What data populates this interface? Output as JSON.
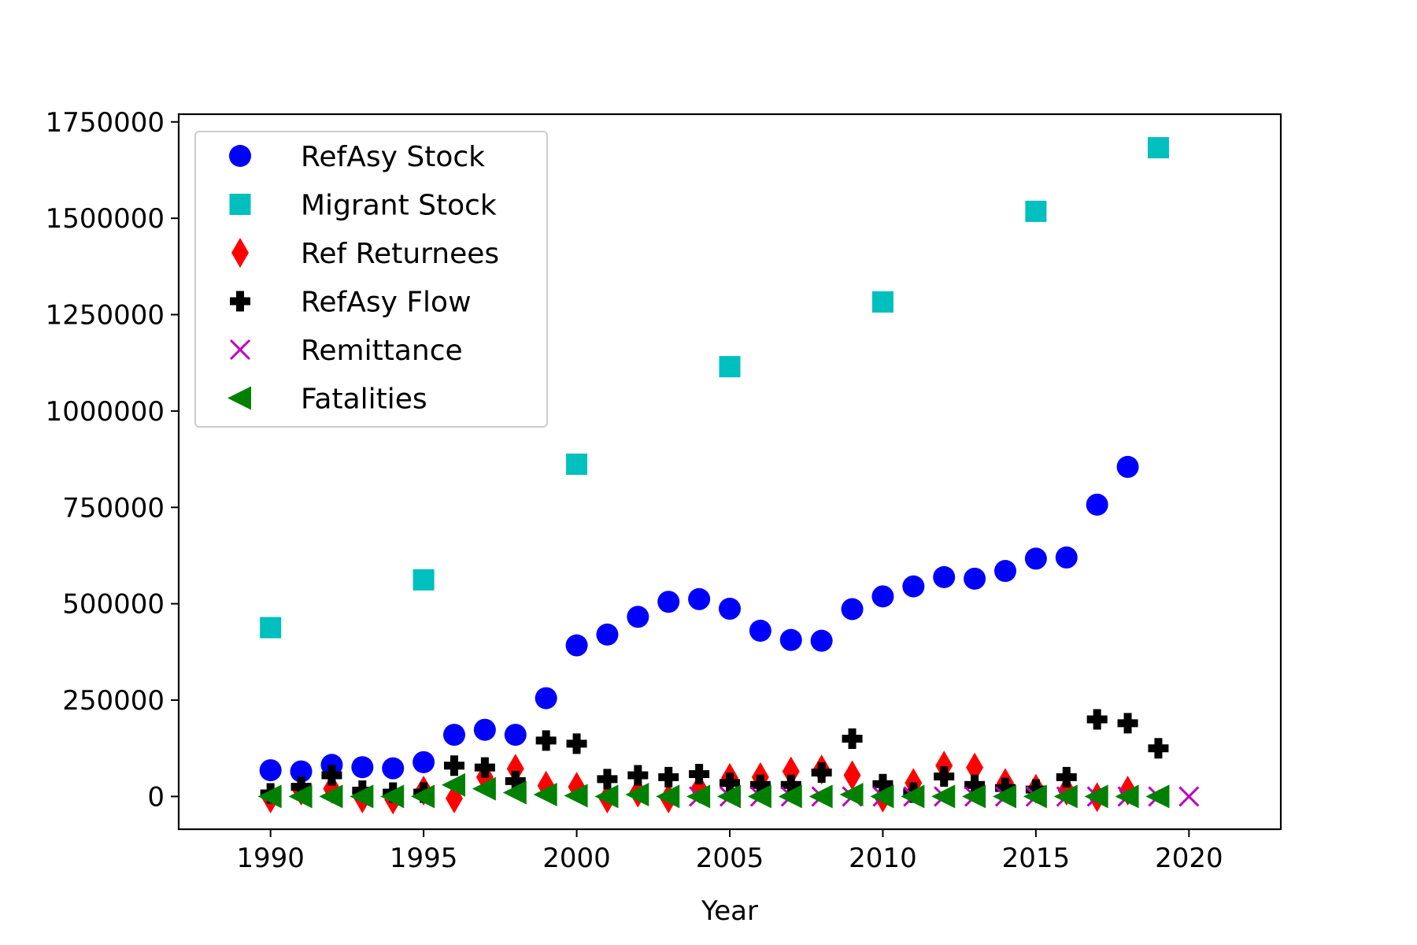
{
  "chart_data": {
    "type": "scatter",
    "title": "",
    "xlabel": "Year",
    "ylabel": "",
    "xlim": [
      1987,
      2023
    ],
    "ylim": [
      -85000,
      1770000
    ],
    "xticks": [
      1990,
      1995,
      2000,
      2005,
      2010,
      2015,
      2020
    ],
    "yticks": [
      0,
      250000,
      500000,
      750000,
      1000000,
      1250000,
      1500000,
      1750000
    ],
    "grid": false,
    "legend_position": "upper-left",
    "series": [
      {
        "name": "RefAsy Stock",
        "marker": "circle",
        "color": "#0000ff",
        "points": [
          [
            1990,
            68000
          ],
          [
            1991,
            65000
          ],
          [
            1992,
            82000
          ],
          [
            1993,
            76000
          ],
          [
            1994,
            73000
          ],
          [
            1995,
            89000
          ],
          [
            1996,
            160000
          ],
          [
            1997,
            173000
          ],
          [
            1998,
            160000
          ],
          [
            1999,
            255000
          ],
          [
            2000,
            392000
          ],
          [
            2001,
            420000
          ],
          [
            2002,
            466000
          ],
          [
            2003,
            505000
          ],
          [
            2004,
            512000
          ],
          [
            2005,
            487000
          ],
          [
            2006,
            430000
          ],
          [
            2007,
            406000
          ],
          [
            2008,
            404000
          ],
          [
            2009,
            486000
          ],
          [
            2010,
            519000
          ],
          [
            2011,
            545000
          ],
          [
            2012,
            569000
          ],
          [
            2013,
            565000
          ],
          [
            2014,
            585000
          ],
          [
            2015,
            617000
          ],
          [
            2016,
            620000
          ],
          [
            2017,
            757000
          ],
          [
            2018,
            855000
          ]
        ]
      },
      {
        "name": "Migrant Stock",
        "marker": "square",
        "color": "#00bfbf",
        "points": [
          [
            1990,
            438000
          ],
          [
            1995,
            562000
          ],
          [
            2000,
            862000
          ],
          [
            2005,
            1115000
          ],
          [
            2010,
            1283000
          ],
          [
            2015,
            1518000
          ],
          [
            2019,
            1683000
          ]
        ]
      },
      {
        "name": "Ref Returnees",
        "marker": "thin_diamond",
        "color": "#ff0000",
        "points": [
          [
            1990,
            -5000
          ],
          [
            1991,
            15000
          ],
          [
            1992,
            20000
          ],
          [
            1993,
            -5000
          ],
          [
            1994,
            -8000
          ],
          [
            1995,
            15000
          ],
          [
            1996,
            -5000
          ],
          [
            1997,
            50000
          ],
          [
            1998,
            72000
          ],
          [
            1999,
            28000
          ],
          [
            2000,
            25000
          ],
          [
            2001,
            -5000
          ],
          [
            2002,
            10000
          ],
          [
            2003,
            -5000
          ],
          [
            2004,
            20000
          ],
          [
            2005,
            48000
          ],
          [
            2006,
            50000
          ],
          [
            2007,
            65000
          ],
          [
            2008,
            70000
          ],
          [
            2009,
            55000
          ],
          [
            2010,
            -3000
          ],
          [
            2011,
            35000
          ],
          [
            2012,
            80000
          ],
          [
            2013,
            75000
          ],
          [
            2014,
            35000
          ],
          [
            2015,
            20000
          ],
          [
            2016,
            15000
          ],
          [
            2017,
            -2000
          ],
          [
            2018,
            15000
          ]
        ]
      },
      {
        "name": "RefAsy Flow",
        "marker": "plus_filled",
        "color": "#000000",
        "points": [
          [
            1990,
            8000
          ],
          [
            1991,
            25000
          ],
          [
            1992,
            55000
          ],
          [
            1993,
            15000
          ],
          [
            1994,
            10000
          ],
          [
            1995,
            10000
          ],
          [
            1996,
            80000
          ],
          [
            1997,
            75000
          ],
          [
            1998,
            40000
          ],
          [
            1999,
            145000
          ],
          [
            2000,
            137000
          ],
          [
            2001,
            45000
          ],
          [
            2002,
            55000
          ],
          [
            2003,
            50000
          ],
          [
            2004,
            58000
          ],
          [
            2005,
            35000
          ],
          [
            2006,
            30000
          ],
          [
            2007,
            30000
          ],
          [
            2008,
            62000
          ],
          [
            2009,
            150000
          ],
          [
            2010,
            32000
          ],
          [
            2011,
            10000
          ],
          [
            2012,
            52000
          ],
          [
            2013,
            30000
          ],
          [
            2014,
            22000
          ],
          [
            2015,
            18000
          ],
          [
            2016,
            50000
          ],
          [
            2017,
            200000
          ],
          [
            2018,
            190000
          ],
          [
            2019,
            125000
          ]
        ]
      },
      {
        "name": "Remittance",
        "marker": "x",
        "color": "#bf00bf",
        "points": [
          [
            2004,
            0
          ],
          [
            2005,
            0
          ],
          [
            2006,
            0
          ],
          [
            2007,
            0
          ],
          [
            2008,
            0
          ],
          [
            2009,
            0
          ],
          [
            2010,
            0
          ],
          [
            2011,
            0
          ],
          [
            2012,
            0
          ],
          [
            2013,
            0
          ],
          [
            2014,
            0
          ],
          [
            2015,
            0
          ],
          [
            2016,
            0
          ],
          [
            2017,
            0
          ],
          [
            2018,
            0
          ],
          [
            2019,
            0
          ],
          [
            2020,
            0
          ]
        ]
      },
      {
        "name": "Fatalities",
        "marker": "triangle_left",
        "color": "#008000",
        "points": [
          [
            1990,
            0
          ],
          [
            1991,
            0
          ],
          [
            1992,
            0
          ],
          [
            1993,
            0
          ],
          [
            1994,
            0
          ],
          [
            1995,
            0
          ],
          [
            1996,
            30000
          ],
          [
            1997,
            20000
          ],
          [
            1998,
            10000
          ],
          [
            1999,
            5000
          ],
          [
            2000,
            2000
          ],
          [
            2001,
            0
          ],
          [
            2002,
            5000
          ],
          [
            2003,
            0
          ],
          [
            2004,
            0
          ],
          [
            2005,
            0
          ],
          [
            2006,
            0
          ],
          [
            2007,
            0
          ],
          [
            2008,
            0
          ],
          [
            2009,
            5000
          ],
          [
            2010,
            0
          ],
          [
            2011,
            0
          ],
          [
            2012,
            0
          ],
          [
            2013,
            0
          ],
          [
            2014,
            0
          ],
          [
            2015,
            0
          ],
          [
            2016,
            0
          ],
          [
            2017,
            0
          ],
          [
            2018,
            0
          ],
          [
            2019,
            0
          ]
        ]
      }
    ]
  }
}
